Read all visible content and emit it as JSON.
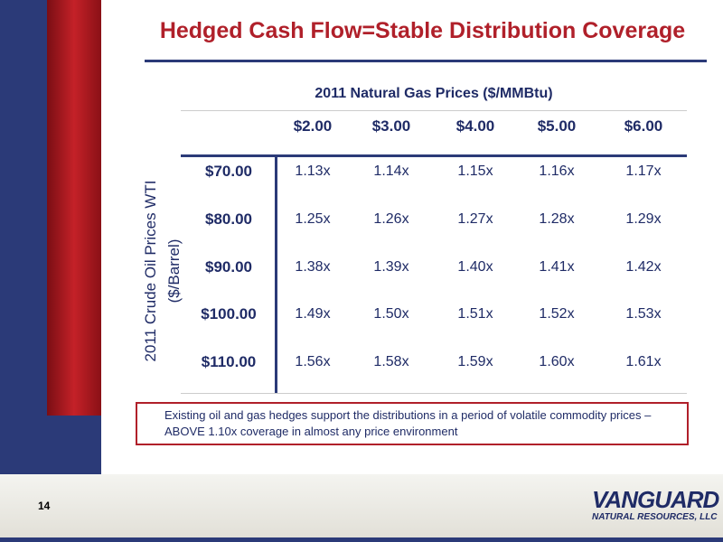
{
  "header": {
    "title": "Hedged Cash Flow=Stable Distribution Coverage"
  },
  "table": {
    "title": "2011 Natural Gas Prices ($/MMBtu)",
    "row_axis_label": [
      "2011 Crude Oil Prices WTI",
      "($/Barrel)"
    ],
    "columns": [
      "$2.00",
      "$3.00",
      "$4.00",
      "$5.00",
      "$6.00"
    ],
    "rows": [
      {
        "label": "$70.00",
        "cells": [
          "1.13x",
          "1.14x",
          "1.15x",
          "1.16x",
          "1.17x"
        ]
      },
      {
        "label": "$80.00",
        "cells": [
          "1.25x",
          "1.26x",
          "1.27x",
          "1.28x",
          "1.29x"
        ]
      },
      {
        "label": "$90.00",
        "cells": [
          "1.38x",
          "1.39x",
          "1.40x",
          "1.41x",
          "1.42x"
        ]
      },
      {
        "label": "$100.00",
        "cells": [
          "1.49x",
          "1.50x",
          "1.51x",
          "1.52x",
          "1.53x"
        ]
      },
      {
        "label": "$110.00",
        "cells": [
          "1.56x",
          "1.58x",
          "1.59x",
          "1.60x",
          "1.61x"
        ]
      }
    ]
  },
  "note": "Existing oil and gas hedges support the distributions in a period of volatile commodity prices – ABOVE 1.10x coverage in almost any price environment",
  "footer": {
    "page_number": "14",
    "logo": [
      "VANGUARD",
      "NATURAL RESOURCES, LLC"
    ]
  }
}
